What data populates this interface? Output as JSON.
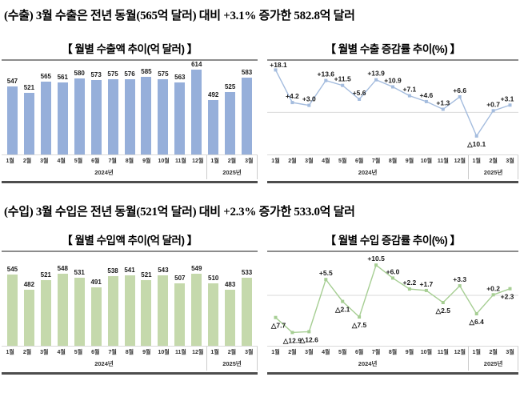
{
  "headlines": {
    "export": "(수출) 3월 수출은 전년 동월(565억 달러) 대비 +3.1% 증가한 582.8억 달러",
    "import": "(수입) 3월 수입은 전년 동월(521억 달러) 대비 +2.3% 증가한 533.0억 달러"
  },
  "colors": {
    "export_bar": "#96AFDA",
    "export_line": "#A4BCDE",
    "import_bar": "#C5D9AC",
    "import_line": "#A6CE93",
    "zero_line": "#D9D9D9"
  },
  "chart_data": [
    {
      "id": "export-amount",
      "type": "bar",
      "title": "【 월별 수출액 추이(억 달러) 】",
      "categories": [
        "1월",
        "2월",
        "3월",
        "4월",
        "5월",
        "6월",
        "7월",
        "8월",
        "9월",
        "10월",
        "11월",
        "12월",
        "1월",
        "2월",
        "3월"
      ],
      "year_groups": [
        {
          "label": "2024년",
          "span": 12
        },
        {
          "label": "2025년",
          "span": 3
        }
      ],
      "values": [
        547,
        521,
        565,
        561,
        580,
        573,
        575,
        576,
        585,
        575,
        563,
        614,
        492,
        525,
        583
      ],
      "ylim": [
        270,
        650
      ],
      "color": "#96AFDA",
      "xlabel": "",
      "ylabel": "억 달러",
      "grid": false,
      "legend": "none"
    },
    {
      "id": "export-growth",
      "type": "line",
      "title": "【 월별 수출 증감률 추이(%) 】",
      "categories": [
        "1월",
        "2월",
        "3월",
        "4월",
        "5월",
        "6월",
        "7월",
        "8월",
        "9월",
        "10월",
        "11월",
        "12월",
        "1월",
        "2월",
        "3월"
      ],
      "year_groups": [
        {
          "label": "2024년",
          "span": 12
        },
        {
          "label": "2025년",
          "span": 3
        }
      ],
      "values": [
        18.1,
        4.2,
        3.0,
        13.6,
        11.5,
        5.6,
        13.9,
        10.9,
        7.1,
        4.6,
        1.3,
        6.6,
        -10.1,
        0.7,
        3.1
      ],
      "point_labels": [
        "+18.1",
        "+4.2",
        "+3.0",
        "+13.6",
        "+11.5",
        "+5.6",
        "+13.9",
        "+10.9",
        "+7.1",
        "+4.6",
        "+1.3",
        "+6.6",
        "△10.1",
        "+0.7",
        "+3.1"
      ],
      "label_pos": [
        "above",
        "above",
        "above",
        "above",
        "above",
        "above",
        "above",
        "above",
        "above",
        "above",
        "above",
        "above",
        "below",
        "above",
        "above"
      ],
      "ylim": [
        -18,
        22
      ],
      "zero_line": true,
      "color": "#A4BCDE",
      "xlabel": "",
      "ylabel": "%",
      "grid": false,
      "legend": "none"
    },
    {
      "id": "import-amount",
      "type": "bar",
      "title": "【 월별 수입액 추이(억 달러) 】",
      "categories": [
        "1월",
        "2월",
        "3월",
        "4월",
        "5월",
        "6월",
        "7월",
        "8월",
        "9월",
        "10월",
        "11월",
        "12월",
        "1월",
        "2월",
        "3월"
      ],
      "year_groups": [
        {
          "label": "2024년",
          "span": 12
        },
        {
          "label": "2025년",
          "span": 3
        }
      ],
      "values": [
        545,
        482,
        521,
        548,
        531,
        491,
        538,
        541,
        521,
        543,
        507,
        549,
        510,
        483,
        533
      ],
      "ylim": [
        245,
        640
      ],
      "color": "#C5D9AC",
      "xlabel": "",
      "ylabel": "억 달러",
      "grid": false,
      "legend": "none"
    },
    {
      "id": "import-growth",
      "type": "line",
      "title": "【 월별 수입 증감률 추이(%) 】",
      "categories": [
        "1월",
        "2월",
        "3월",
        "4월",
        "5월",
        "6월",
        "7월",
        "8월",
        "9월",
        "10월",
        "11월",
        "12월",
        "1월",
        "2월",
        "3월"
      ],
      "year_groups": [
        {
          "label": "2024년",
          "span": 12
        },
        {
          "label": "2025년",
          "span": 3
        }
      ],
      "values": [
        -7.7,
        -12.9,
        -12.6,
        5.5,
        -2.1,
        -7.5,
        10.5,
        6.0,
        2.2,
        1.7,
        -2.5,
        3.3,
        -6.4,
        0.2,
        2.3
      ],
      "point_labels": [
        "△7.7",
        "△12.9",
        "△12.6",
        "+5.5",
        "△2.1",
        "△7.5",
        "+10.5",
        "+6.0",
        "+2.2",
        "+1.7",
        "△2.5",
        "+3.3",
        "△6.4",
        "+0.2",
        "+2.3"
      ],
      "label_pos": [
        "below",
        "below",
        "below",
        "above",
        "below",
        "below",
        "above",
        "above",
        "above",
        "above",
        "below",
        "above",
        "below",
        "above",
        "below"
      ],
      "ylim": [
        -17.5,
        15
      ],
      "zero_line": true,
      "color": "#A6CE93",
      "xlabel": "",
      "ylabel": "%",
      "grid": false,
      "legend": "none"
    }
  ]
}
